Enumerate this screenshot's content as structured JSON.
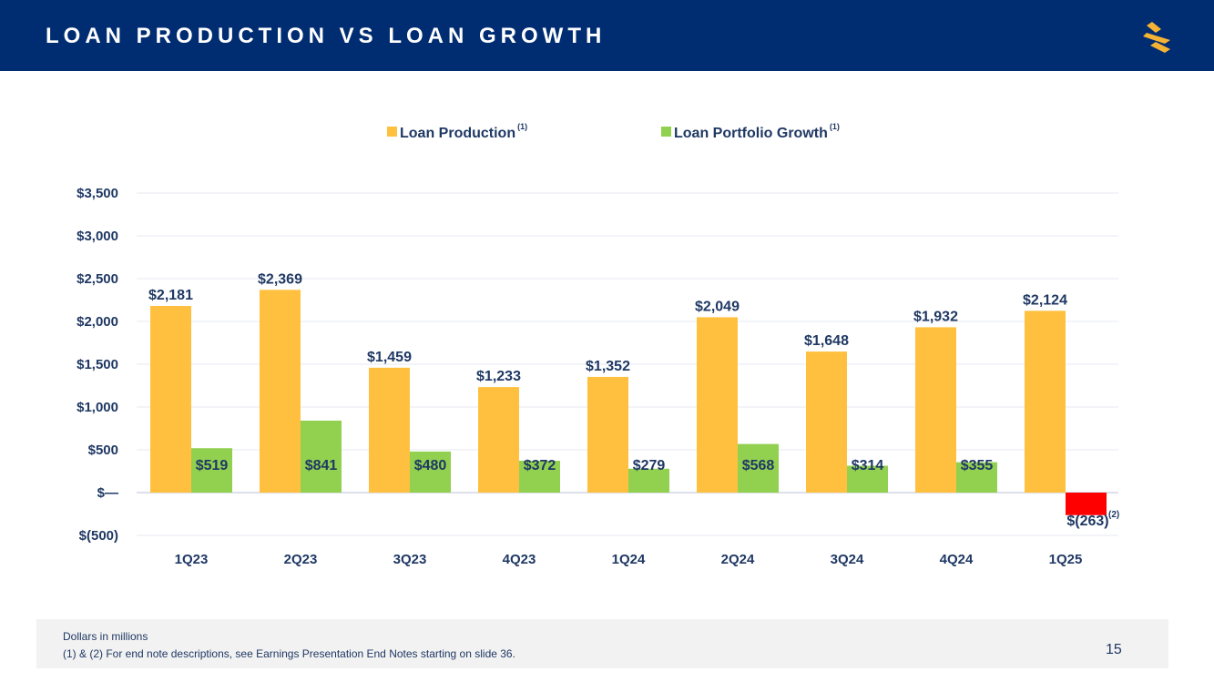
{
  "header": {
    "title": "LOAN PRODUCTION VS LOAN GROWTH"
  },
  "colors": {
    "header_bg": "#002d72",
    "production": "#ffc03f",
    "growth": "#92d050",
    "negative": "#ff0000",
    "logo": "#f5b335"
  },
  "chart_data": {
    "type": "bar",
    "title": "",
    "xlabel": "",
    "ylabel": "",
    "categories": [
      "1Q23",
      "2Q23",
      "3Q23",
      "4Q23",
      "1Q24",
      "2Q24",
      "3Q24",
      "4Q24",
      "1Q25"
    ],
    "series": [
      {
        "name": "Loan Production",
        "superscript": "(1)",
        "values": [
          2181,
          2369,
          1459,
          1233,
          1352,
          2049,
          1648,
          1932,
          2124
        ],
        "labels": [
          "$2,181",
          "$2,369",
          "$1,459",
          "$1,233",
          "$1,352",
          "$2,049",
          "$1,648",
          "$1,932",
          "$2,124"
        ]
      },
      {
        "name": "Loan Portfolio Growth",
        "superscript": "(1)",
        "values": [
          519,
          841,
          480,
          372,
          279,
          568,
          314,
          355,
          -263
        ],
        "labels": [
          "$519",
          "$841",
          "$480",
          "$372",
          "$279",
          "$568",
          "$314",
          "$355",
          "$(263)"
        ]
      }
    ],
    "annotations": [
      {
        "series": 1,
        "index": 8,
        "text": "(2)"
      }
    ],
    "ylim": [
      -500,
      3500
    ],
    "yticks": [
      3500,
      3000,
      2500,
      2000,
      1500,
      1000,
      500,
      0,
      -500
    ],
    "ytick_labels": [
      "$3,500",
      "$3,000",
      "$2,500",
      "$2,000",
      "$1,500",
      "$1,000",
      "$500",
      "$—",
      "$(500)"
    ],
    "grid": true,
    "legend": "top-center"
  },
  "footer": {
    "note1": "Dollars in millions",
    "note2": "(1) & (2)  For end note descriptions, see Earnings Presentation End Notes starting on slide 36.",
    "page_number": "15"
  }
}
